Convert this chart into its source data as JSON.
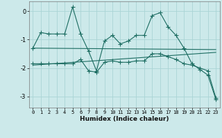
{
  "xlabel": "Humidex (Indice chaleur)",
  "background_color": "#cce9ea",
  "grid_color": "#aad4d5",
  "line_color": "#1a6b60",
  "x_ticks": [
    0,
    1,
    2,
    3,
    4,
    5,
    6,
    7,
    8,
    9,
    10,
    11,
    12,
    13,
    14,
    15,
    16,
    17,
    18,
    19,
    20,
    21,
    22,
    23
  ],
  "ylim": [
    -3.4,
    0.35
  ],
  "xlim": [
    -0.5,
    23.5
  ],
  "series1_x": [
    0,
    1,
    2,
    3,
    4,
    5,
    6,
    7,
    8,
    9,
    10,
    11,
    12,
    13,
    14,
    15,
    16,
    17,
    18,
    19,
    20,
    21,
    22,
    23
  ],
  "series1_y": [
    -1.3,
    -0.75,
    -0.8,
    -0.8,
    -0.8,
    0.15,
    -0.8,
    -1.4,
    -2.1,
    -1.05,
    -0.85,
    -1.15,
    -1.05,
    -0.85,
    -0.85,
    -0.15,
    -0.05,
    -0.55,
    -0.85,
    -1.3,
    -1.85,
    -2.05,
    -2.25,
    -3.1
  ],
  "series2_x": [
    0,
    1,
    2,
    3,
    4,
    5,
    6,
    7,
    8,
    9,
    10,
    11,
    12,
    13,
    14,
    15,
    16,
    17,
    18,
    19,
    20,
    21,
    22,
    23
  ],
  "series2_y": [
    -1.85,
    -1.85,
    -1.85,
    -1.85,
    -1.85,
    -1.85,
    -1.7,
    -2.1,
    -2.15,
    -1.8,
    -1.75,
    -1.8,
    -1.8,
    -1.75,
    -1.75,
    -1.5,
    -1.5,
    -1.6,
    -1.7,
    -1.85,
    -1.9,
    -2.0,
    -2.1,
    -3.05
  ],
  "trend1_x": [
    0,
    23
  ],
  "trend1_y": [
    -1.3,
    -1.35
  ],
  "trend2_x": [
    0,
    23
  ],
  "trend2_y": [
    -1.9,
    -1.45
  ]
}
